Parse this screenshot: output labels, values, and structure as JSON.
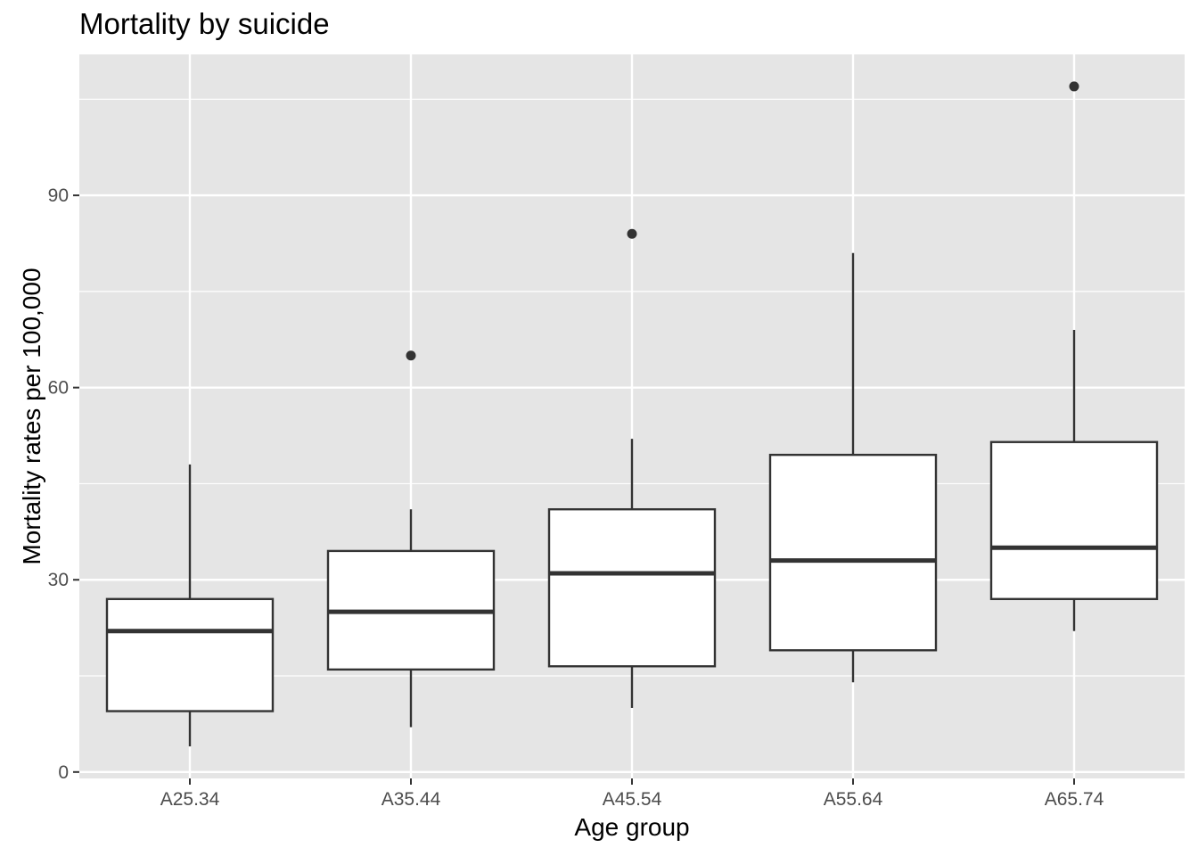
{
  "chart_data": {
    "type": "boxplot",
    "title": "Mortality by suicide",
    "xlabel": "Age group",
    "ylabel": "Mortality rates per 100,000",
    "categories": [
      "A25.34",
      "A35.44",
      "A45.54",
      "A55.64",
      "A65.74"
    ],
    "boxes": [
      {
        "category": "A25.34",
        "whisker_low": 4,
        "q1": 9.5,
        "median": 22,
        "q3": 27,
        "whisker_high": 48,
        "outliers": []
      },
      {
        "category": "A35.44",
        "whisker_low": 7,
        "q1": 16,
        "median": 25,
        "q3": 34.5,
        "whisker_high": 41,
        "outliers": [
          65
        ]
      },
      {
        "category": "A45.54",
        "whisker_low": 10,
        "q1": 16.5,
        "median": 31,
        "q3": 41,
        "whisker_high": 52,
        "outliers": [
          84
        ]
      },
      {
        "category": "A55.64",
        "whisker_low": 14,
        "q1": 19,
        "median": 33,
        "q3": 49.5,
        "whisker_high": 81,
        "outliers": []
      },
      {
        "category": "A65.74",
        "whisker_low": 22,
        "q1": 27,
        "median": 35,
        "q3": 51.5,
        "whisker_high": 69,
        "outliers": [
          107
        ]
      }
    ],
    "y_ticks": [
      0,
      30,
      60,
      90
    ],
    "y_tick_labels": [
      "0",
      "30",
      "60",
      "90"
    ],
    "ylim": [
      -1,
      112
    ],
    "grid": true,
    "colors": {
      "panel_background": "#e5e5e5",
      "grid": "#ffffff",
      "box_fill": "#ffffff",
      "box_line": "#333333",
      "point": "#333333",
      "tick_text": "#4d4d4d"
    }
  }
}
